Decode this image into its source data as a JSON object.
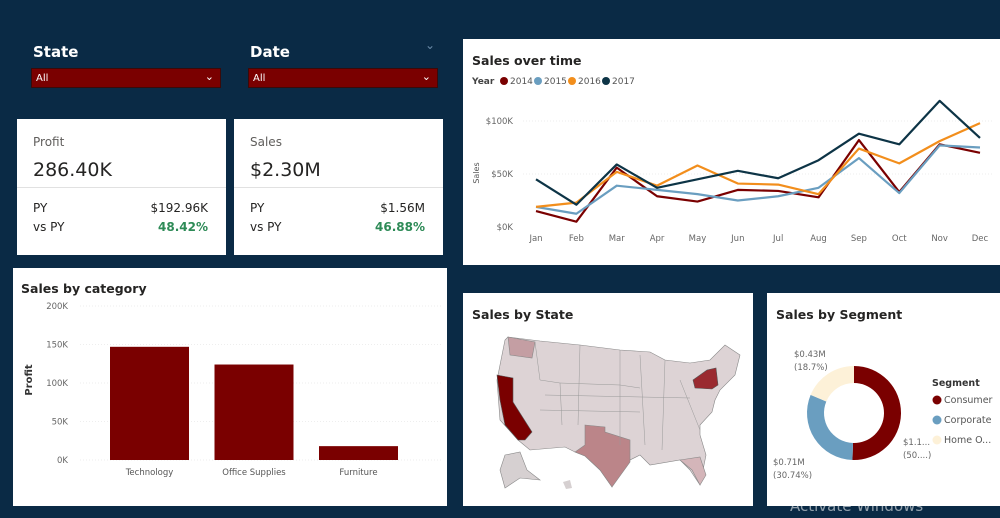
{
  "filters": {
    "state": {
      "label": "State",
      "value": "All"
    },
    "date": {
      "label": "Date",
      "value": "All"
    }
  },
  "kpis": [
    {
      "label": "Profit",
      "value": "286.40K",
      "py_label": "PY",
      "py": "$192.96K",
      "vs_label": "vs PY",
      "vs": "48.42%"
    },
    {
      "label": "Sales",
      "value": "$2.30M",
      "py_label": "PY",
      "py": "$1.56M",
      "vs_label": "vs PY",
      "vs": "46.88%"
    }
  ],
  "colors": {
    "background": "#0a2a45",
    "accent": "#7a0000",
    "positive": "#2e8b57"
  },
  "chart_data": [
    {
      "type": "line",
      "title": "Sales over time",
      "legend_title": "Year",
      "ylabel": "Sales",
      "legend": "top-left",
      "categories": [
        "Jan",
        "Feb",
        "Mar",
        "Apr",
        "May",
        "Jun",
        "Jul",
        "Aug",
        "Sep",
        "Oct",
        "Nov",
        "Dec"
      ],
      "yticks": [
        "$0K",
        "$50K",
        "$100K"
      ],
      "ylim": [
        0,
        120000
      ],
      "grid": true,
      "series": [
        {
          "name": "2014",
          "color": "#7a0000",
          "values": [
            15000,
            5000,
            56000,
            29000,
            24000,
            35000,
            34000,
            28000,
            82000,
            33000,
            78000,
            70000
          ]
        },
        {
          "name": "2015",
          "color": "#6a9ec0",
          "values": [
            19000,
            12500,
            39000,
            35000,
            31000,
            25000,
            29000,
            37000,
            65000,
            32000,
            77000,
            75000
          ]
        },
        {
          "name": "2016",
          "color": "#f28e1c",
          "values": [
            19000,
            23000,
            52000,
            39000,
            58000,
            41000,
            40000,
            31000,
            74000,
            60000,
            81000,
            98000
          ]
        },
        {
          "name": "2017",
          "color": "#0d3446",
          "values": [
            45000,
            21000,
            59000,
            37000,
            45000,
            53000,
            46000,
            63000,
            88000,
            78000,
            119000,
            84000
          ]
        }
      ]
    },
    {
      "type": "bar",
      "title": "Sales by category",
      "ylabel": "Profit",
      "ylim": [
        0,
        200000
      ],
      "yticks": [
        "0K",
        "50K",
        "100K",
        "150K",
        "200K"
      ],
      "categories": [
        "Technology",
        "Office Supplies",
        "Furniture"
      ],
      "values": [
        147000,
        124000,
        18000
      ],
      "color": "#7a0000"
    },
    {
      "type": "pie",
      "title": "Sales by Segment",
      "legend_title": "Segment",
      "legend": "right",
      "series": [
        {
          "name": "Consumer",
          "value": 1.16,
          "percent": 50.5,
          "label": "$1.1...",
          "pct_label": "(50....)",
          "color": "#7a0000"
        },
        {
          "name": "Corporate",
          "value": 0.71,
          "percent": 30.74,
          "label": "$0.71M",
          "pct_label": "(30.74%)",
          "color": "#6a9ec0"
        },
        {
          "name": "Home O...",
          "value": 0.43,
          "percent": 18.7,
          "label": "$0.43M",
          "pct_label": "(18.7%)",
          "color": "#fdf1d8"
        }
      ]
    }
  ],
  "map": {
    "title": "Sales by State",
    "highlight_color": "#7a0000",
    "base_color": "#ddd3d5"
  },
  "watermark": "Activate Windows"
}
